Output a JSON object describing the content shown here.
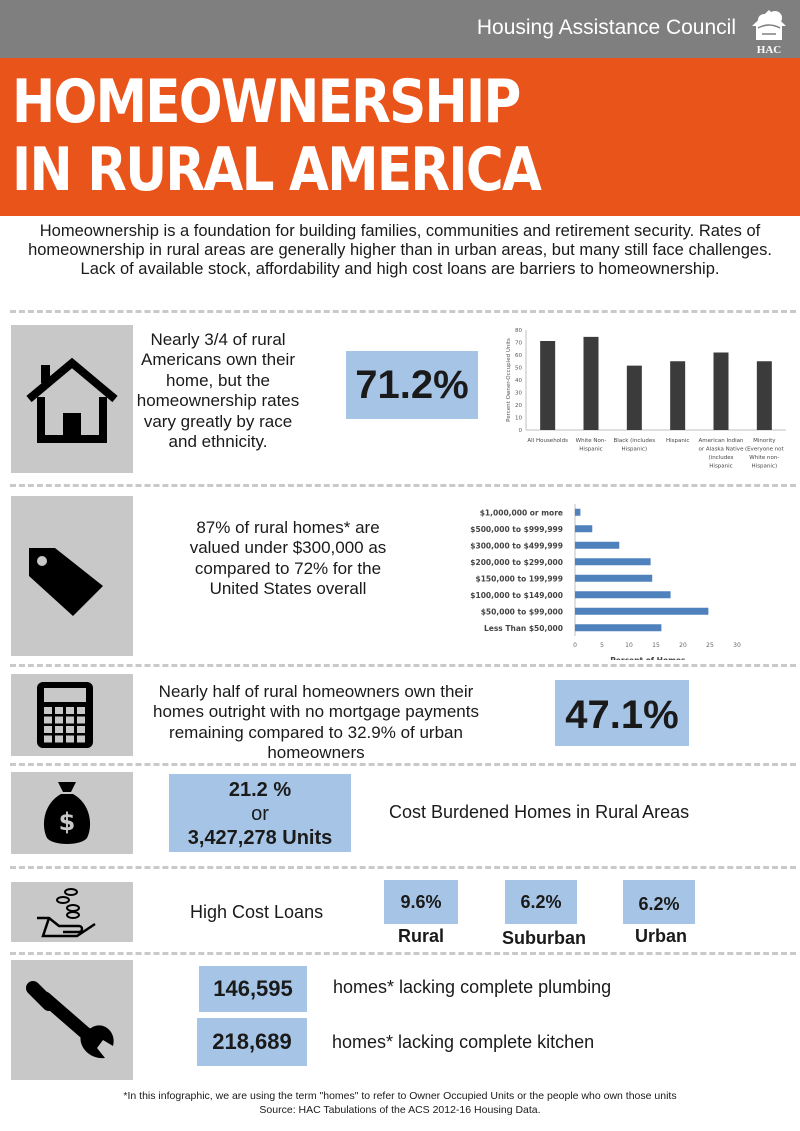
{
  "header": {
    "org_name": "Housing Assistance Council",
    "logo_text": "HAC",
    "title_line1": "HOMEOWNERSHIP",
    "title_line2": "IN RURAL AMERICA",
    "colors": {
      "topbar": "#7f7f7f",
      "banner": "#e9541a",
      "stat_box": "#a6c5e6",
      "bar_dark": "#3b3b3b",
      "bar_blue": "#4f81bd"
    }
  },
  "intro": "Homeownership is a foundation for building families, communities and retirement security. Rates of homeownership in rural areas are generally higher than in urban areas, but many still face challenges. Lack of available stock, affordability and high cost loans are barriers to homeownership.",
  "section_ownership": {
    "icon": "house-icon",
    "text": "Nearly 3/4 of rural Americans own their home, but the homeownership rates vary greatly by race and ethnicity.",
    "stat": "71.2%"
  },
  "section_value": {
    "icon": "price-tag-icon",
    "text": "87% of rural homes* are valued under $300,000 as compared to 72% for the United States overall"
  },
  "section_mortgage": {
    "icon": "calculator-icon",
    "text": "Nearly half of rural homeowners own their homes outright with no mortgage payments remaining compared to 32.9% of urban homeowners",
    "stat": "47.1%"
  },
  "section_burden": {
    "icon": "money-bag-icon",
    "stat_line1": "21.2 %",
    "stat_line2": "or",
    "stat_line3": "3,427,278 Units",
    "label": "Cost Burdened Homes in Rural Areas"
  },
  "section_loans": {
    "icon": "hand-coins-icon",
    "label": "High Cost Loans",
    "items": [
      {
        "value": "9.6%",
        "label": "Rural"
      },
      {
        "value": "6.2%",
        "label": "Suburban"
      },
      {
        "value": "6.2%",
        "label": "Urban"
      }
    ]
  },
  "section_facilities": {
    "icon": "wrench-icon",
    "items": [
      {
        "value": "146,595",
        "label": "homes* lacking complete plumbing"
      },
      {
        "value": "218,689",
        "label": "homes* lacking complete kitchen"
      }
    ]
  },
  "footnote": {
    "line1": "*In this infographic, we are using the term \"homes\" to refer to Owner Occupied Units or the people who own those units",
    "line2": "Source: HAC Tabulations of the ACS 2012-16 Housing Data."
  },
  "chart_data": [
    {
      "type": "bar",
      "orientation": "vertical",
      "categories": [
        [
          "All Households"
        ],
        [
          "White Non-",
          "Hispanic"
        ],
        [
          "Black (includes",
          "Hispanic)"
        ],
        [
          "Hispanic"
        ],
        [
          "American Indian",
          "or Alaska Native",
          "(includes",
          "Hispanic"
        ],
        [
          "Minority",
          "(Everyone not",
          "White non-",
          "Hispanic)"
        ]
      ],
      "values": [
        71.2,
        74.5,
        51.5,
        55,
        62,
        55
      ],
      "ylabel": "Percent Owner-Occupied Units",
      "ylim": [
        0,
        80
      ],
      "yticks": [
        "0",
        "10",
        "20",
        "30",
        "40",
        "50",
        "60",
        "70",
        "80"
      ],
      "grid": false,
      "color": "#3b3b3b"
    },
    {
      "type": "bar",
      "orientation": "horizontal",
      "categories": [
        "$1,000,000 or more",
        "$500,000 to $999,999",
        "$300,000 to $499,999",
        "$200,000 to $299,000",
        "$150,000 to 199,999",
        "$100,000 to $149,000",
        "$50,000 to $99,000",
        "Less Than $50,000"
      ],
      "values": [
        1,
        3.2,
        8.2,
        14,
        14.3,
        17.7,
        24.7,
        16
      ],
      "xlabel": "Percent of Homes",
      "xlim": [
        0,
        30
      ],
      "xticks": [
        "0",
        "5",
        "10",
        "15",
        "20",
        "25",
        "30"
      ],
      "grid": false,
      "color": "#4f81bd"
    }
  ]
}
